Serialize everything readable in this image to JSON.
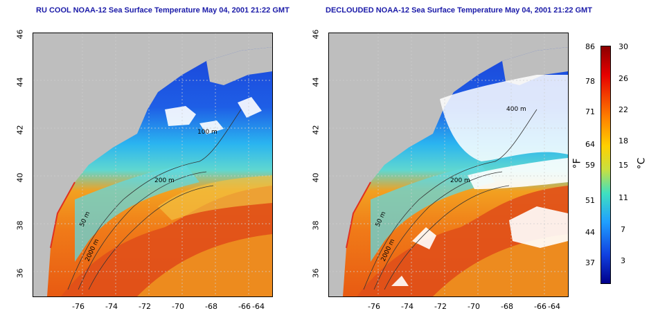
{
  "panels": [
    {
      "title": "RU COOL NOAA-12 Sea Surface Temperature May 04, 2001 21:22 GMT"
    },
    {
      "title": "DECLOUDED NOAA-12 Sea Surface Temperature May 04, 2001 21:22 GMT"
    }
  ],
  "axes": {
    "x_ticks": [
      "-76",
      "-74",
      "-72",
      "-70",
      "-68",
      "-66",
      "-64"
    ],
    "y_ticks": [
      "46",
      "44",
      "42",
      "40",
      "38",
      "36"
    ]
  },
  "contours": {
    "l50": "50 m",
    "l200": "200 m",
    "l2000": "2000 m",
    "l400": "400 m",
    "l100": "100 m"
  },
  "colorbar": {
    "f_ticks": [
      "86",
      "78",
      "71",
      "64",
      "59",
      "51",
      "44",
      "37"
    ],
    "c_ticks": [
      "30",
      "26",
      "22",
      "18",
      "15",
      "11",
      "7",
      "3"
    ],
    "f_unit": "°F",
    "c_unit": "°C"
  },
  "colors": {
    "land": "#bebebe",
    "cloud": "#ffffff",
    "grid": "#cfcfcf"
  }
}
